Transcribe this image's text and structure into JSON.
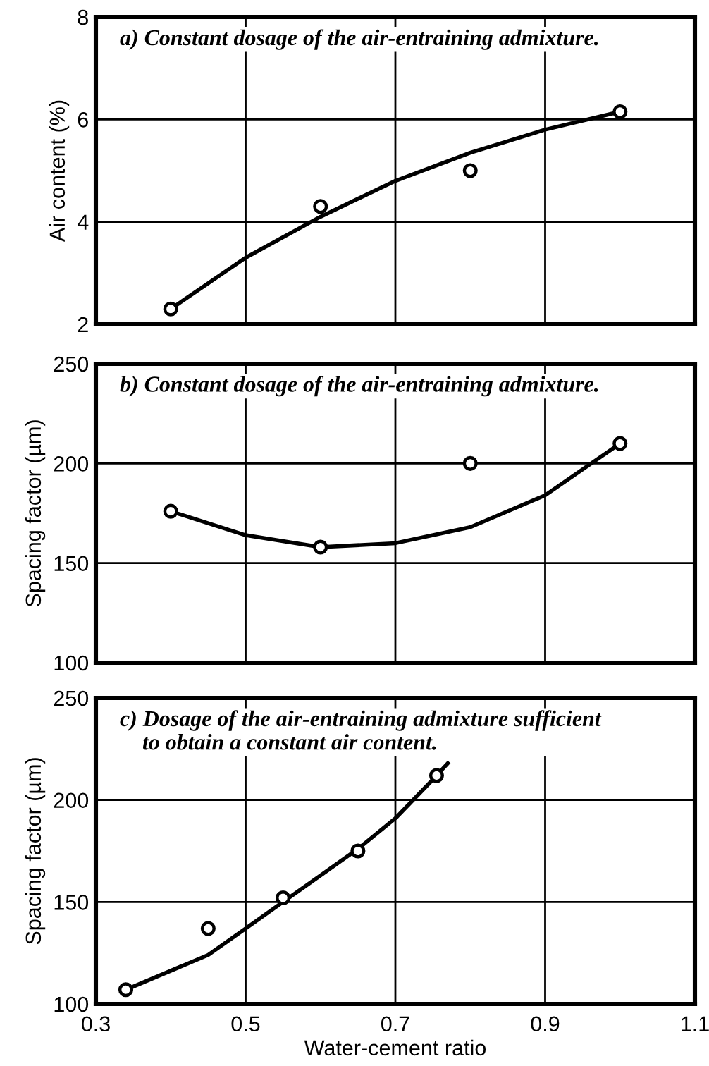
{
  "chart_data": [
    {
      "type": "scatter",
      "title": "a) Constant dosage of the air-entraining admixture.",
      "ylabel": "Air content (%)",
      "xlim": [
        0.3,
        1.1
      ],
      "xticks": [
        0.3,
        0.5,
        0.7,
        0.9,
        1.1
      ],
      "ylim": [
        2,
        8
      ],
      "yticks": [
        2,
        4,
        6,
        8
      ],
      "grid": true,
      "tick_labels": "y",
      "series": [
        {
          "color": "#000000",
          "marker": "circle",
          "x": [
            0.4,
            0.6,
            0.8,
            1.0
          ],
          "values": [
            2.3,
            4.3,
            5.0,
            6.15
          ]
        },
        {
          "type": "line",
          "color": "#000000",
          "marker": "none",
          "x": [
            0.4,
            0.5,
            0.6,
            0.7,
            0.8,
            0.9,
            1.0
          ],
          "values": [
            2.3,
            3.3,
            4.1,
            4.8,
            5.35,
            5.8,
            6.15
          ]
        }
      ]
    },
    {
      "type": "scatter",
      "title": "b) Constant dosage of the air-entraining admixture.",
      "ylabel": "Spacing factor (µm)",
      "xlim": [
        0.3,
        1.1
      ],
      "xticks": [
        0.3,
        0.5,
        0.7,
        0.9,
        1.1
      ],
      "ylim": [
        100,
        250
      ],
      "yticks": [
        100,
        150,
        200,
        250
      ],
      "grid": true,
      "tick_labels": "y",
      "series": [
        {
          "color": "#000000",
          "marker": "circle",
          "x": [
            0.4,
            0.6,
            0.8,
            1.0
          ],
          "values": [
            176,
            158,
            200,
            210
          ]
        },
        {
          "type": "line",
          "color": "#000000",
          "marker": "none",
          "x": [
            0.4,
            0.5,
            0.6,
            0.7,
            0.8,
            0.9,
            1.0
          ],
          "values": [
            176,
            164,
            158,
            160,
            168,
            184,
            210
          ]
        }
      ]
    },
    {
      "type": "scatter",
      "title": "c) Dosage of the air-entraining admixture sufficient\n    to obtain a constant air content.",
      "ylabel": "Spacing factor (µm)",
      "xlabel": "Water-cement ratio",
      "xlim": [
        0.3,
        1.1
      ],
      "xticks": [
        0.3,
        0.5,
        0.7,
        0.9,
        1.1
      ],
      "ylim": [
        100,
        250
      ],
      "yticks": [
        100,
        150,
        200,
        250
      ],
      "grid": true,
      "series": [
        {
          "color": "#000000",
          "marker": "circle",
          "x": [
            0.34,
            0.45,
            0.55,
            0.65,
            0.755
          ],
          "values": [
            107,
            137,
            152,
            175,
            212
          ]
        },
        {
          "type": "line",
          "color": "#000000",
          "marker": "none",
          "x": [
            0.34,
            0.45,
            0.5,
            0.55,
            0.6,
            0.65,
            0.7,
            0.75,
            0.77
          ],
          "values": [
            107,
            124,
            137,
            150,
            163,
            176,
            191,
            210,
            218
          ]
        }
      ]
    }
  ]
}
